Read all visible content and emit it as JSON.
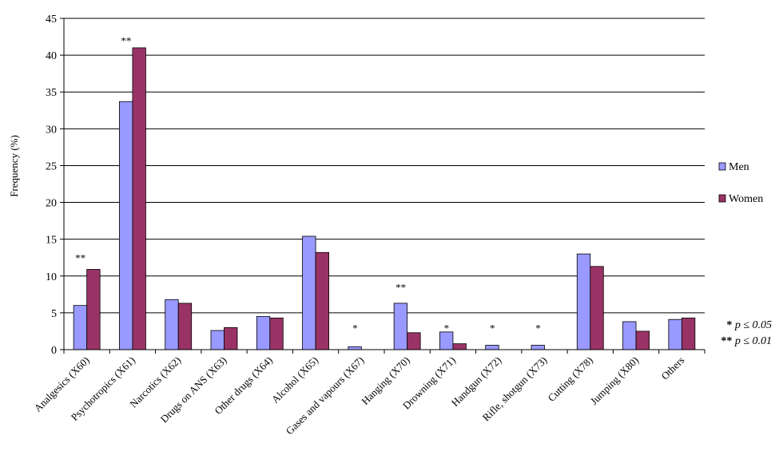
{
  "chart_data": {
    "type": "bar",
    "ylabel": "Frequency (%)",
    "ylim": [
      0,
      45
    ],
    "yticks": [
      0,
      5,
      10,
      15,
      20,
      25,
      30,
      35,
      40,
      45
    ],
    "grid": true,
    "legend_position": "right",
    "categories": [
      "Analgesics (X60)",
      "Psychotropics (X61)",
      "Narcotics (X62)",
      "Drugs on ANS (X63)",
      "Other drugs (X64)",
      "Alcohol (X65)",
      "Gases and vapours (X67)",
      "Hanging (X70)",
      "Drowning (X71)",
      "Handgun (X72)",
      "Rifle, shotgun (X73)",
      "Cutting (X78)",
      "Jumping (X80)",
      "Others"
    ],
    "series": [
      {
        "name": "Men",
        "color": "#9999ff",
        "values": [
          6.0,
          33.7,
          6.8,
          2.6,
          4.5,
          15.4,
          0.4,
          6.3,
          2.4,
          0.6,
          0.6,
          13.0,
          3.8,
          4.1
        ]
      },
      {
        "name": "Women",
        "color": "#993366",
        "values": [
          10.9,
          41.0,
          6.3,
          3.0,
          4.3,
          13.2,
          0.0,
          2.3,
          0.8,
          0.0,
          0.0,
          11.3,
          2.5,
          4.3
        ]
      }
    ],
    "significance": [
      "**",
      "**",
      "",
      "",
      "",
      "",
      "*",
      "**",
      "*",
      "*",
      "*",
      "",
      "",
      ""
    ],
    "significance_y": [
      12.5,
      42.0,
      null,
      null,
      null,
      null,
      3.0,
      8.5,
      3.0,
      3.0,
      3.0,
      null,
      null,
      null
    ],
    "footnotes": [
      {
        "stars": "*",
        "text": "p ≤ 0.05"
      },
      {
        "stars": "**",
        "text": "p ≤ 0.01"
      }
    ]
  }
}
